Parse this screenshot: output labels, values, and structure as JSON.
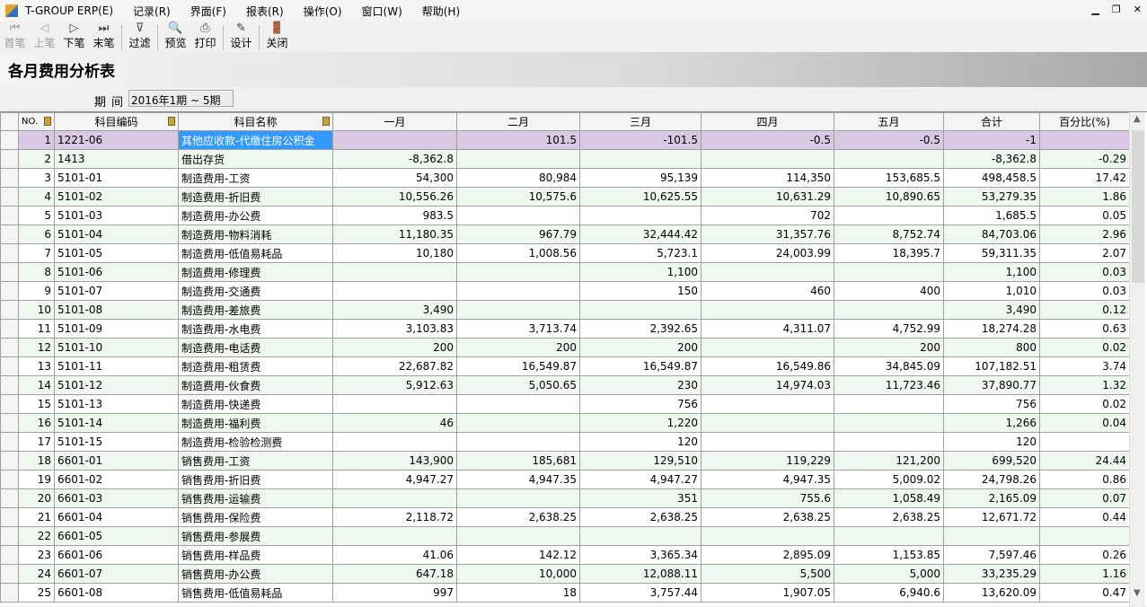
{
  "menu": {
    "app": "T-GROUP ERP(E)",
    "items": [
      "记录(R)",
      "界面(F)",
      "报表(R)",
      "操作(O)",
      "窗口(W)",
      "帮助(H)"
    ]
  },
  "toolbar": [
    {
      "label": "首笔",
      "icon": "first-record-icon",
      "glyph": "⏮",
      "enabled": false
    },
    {
      "label": "上笔",
      "icon": "prev-record-icon",
      "glyph": "◁",
      "enabled": false
    },
    {
      "label": "下笔",
      "icon": "next-record-icon",
      "glyph": "▷",
      "enabled": true
    },
    {
      "label": "末笔",
      "icon": "last-record-icon",
      "glyph": "⏭",
      "enabled": true
    },
    {
      "label": "过滤",
      "icon": "filter-icon",
      "glyph": "⊽",
      "enabled": true
    },
    {
      "label": "预览",
      "icon": "preview-icon",
      "glyph": "🔍",
      "enabled": true
    },
    {
      "label": "打印",
      "icon": "print-icon",
      "glyph": "⎙",
      "enabled": true
    },
    {
      "label": "设计",
      "icon": "design-icon",
      "glyph": "✎",
      "enabled": true
    },
    {
      "label": "关闭",
      "icon": "close-door-icon",
      "glyph": "🚪",
      "enabled": true
    }
  ],
  "title": "各月费用分析表",
  "period": {
    "label": "期间",
    "value": "2016年1期 ~ 5期"
  },
  "table": {
    "headers": [
      "NO.",
      "科目编码",
      "科目名称",
      "一月",
      "二月",
      "三月",
      "四月",
      "五月",
      "合计",
      "百分比(%)"
    ],
    "rows": [
      [
        "1",
        "1221-06",
        "其他应收款-代缴住房公积金",
        "",
        "101.5",
        "-101.5",
        "-0.5",
        "-0.5",
        "-1",
        ""
      ],
      [
        "2",
        "1413",
        "借出存货",
        "-8,362.8",
        "",
        "",
        "",
        "",
        "-8,362.8",
        "-0.29"
      ],
      [
        "3",
        "5101-01",
        "制造费用-工资",
        "54,300",
        "80,984",
        "95,139",
        "114,350",
        "153,685.5",
        "498,458.5",
        "17.42"
      ],
      [
        "4",
        "5101-02",
        "制造费用-折旧费",
        "10,556.26",
        "10,575.6",
        "10,625.55",
        "10,631.29",
        "10,890.65",
        "53,279.35",
        "1.86"
      ],
      [
        "5",
        "5101-03",
        "制造费用-办公费",
        "983.5",
        "",
        "",
        "702",
        "",
        "1,685.5",
        "0.05"
      ],
      [
        "6",
        "5101-04",
        "制造费用-物料消耗",
        "11,180.35",
        "967.79",
        "32,444.42",
        "31,357.76",
        "8,752.74",
        "84,703.06",
        "2.96"
      ],
      [
        "7",
        "5101-05",
        "制造费用-低值易耗品",
        "10,180",
        "1,008.56",
        "5,723.1",
        "24,003.99",
        "18,395.7",
        "59,311.35",
        "2.07"
      ],
      [
        "8",
        "5101-06",
        "制造费用-修理费",
        "",
        "",
        "1,100",
        "",
        "",
        "1,100",
        "0.03"
      ],
      [
        "9",
        "5101-07",
        "制造费用-交通费",
        "",
        "",
        "150",
        "460",
        "400",
        "1,010",
        "0.03"
      ],
      [
        "10",
        "5101-08",
        "制造费用-差旅费",
        "3,490",
        "",
        "",
        "",
        "",
        "3,490",
        "0.12"
      ],
      [
        "11",
        "5101-09",
        "制造费用-水电费",
        "3,103.83",
        "3,713.74",
        "2,392.65",
        "4,311.07",
        "4,752.99",
        "18,274.28",
        "0.63"
      ],
      [
        "12",
        "5101-10",
        "制造费用-电话费",
        "200",
        "200",
        "200",
        "",
        "200",
        "800",
        "0.02"
      ],
      [
        "13",
        "5101-11",
        "制造费用-租赁费",
        "22,687.82",
        "16,549.87",
        "16,549.87",
        "16,549.86",
        "34,845.09",
        "107,182.51",
        "3.74"
      ],
      [
        "14",
        "5101-12",
        "制造费用-伙食费",
        "5,912.63",
        "5,050.65",
        "230",
        "14,974.03",
        "11,723.46",
        "37,890.77",
        "1.32"
      ],
      [
        "15",
        "5101-13",
        "制造费用-快递费",
        "",
        "",
        "756",
        "",
        "",
        "756",
        "0.02"
      ],
      [
        "16",
        "5101-14",
        "制造费用-福利费",
        "46",
        "",
        "1,220",
        "",
        "",
        "1,266",
        "0.04"
      ],
      [
        "17",
        "5101-15",
        "制造费用-检验检测费",
        "",
        "",
        "120",
        "",
        "",
        "120",
        ""
      ],
      [
        "18",
        "6601-01",
        "销售费用-工资",
        "143,900",
        "185,681",
        "129,510",
        "119,229",
        "121,200",
        "699,520",
        "24.44"
      ],
      [
        "19",
        "6601-02",
        "销售费用-折旧费",
        "4,947.27",
        "4,947.35",
        "4,947.27",
        "4,947.35",
        "5,009.02",
        "24,798.26",
        "0.86"
      ],
      [
        "20",
        "6601-03",
        "销售费用-运输费",
        "",
        "",
        "351",
        "755.6",
        "1,058.49",
        "2,165.09",
        "0.07"
      ],
      [
        "21",
        "6601-04",
        "销售费用-保险费",
        "2,118.72",
        "2,638.25",
        "2,638.25",
        "2,638.25",
        "2,638.25",
        "12,671.72",
        "0.44"
      ],
      [
        "22",
        "6601-05",
        "销售费用-参展费",
        "",
        "",
        "",
        "",
        "",
        "",
        ""
      ],
      [
        "23",
        "6601-06",
        "销售费用-样品费",
        "41.06",
        "142.12",
        "3,365.34",
        "2,895.09",
        "1,153.85",
        "7,597.46",
        "0.26"
      ],
      [
        "24",
        "6601-07",
        "销售费用-办公费",
        "647.18",
        "10,000",
        "12,088.11",
        "5,500",
        "5,000",
        "33,235.29",
        "1.16"
      ],
      [
        "25",
        "6601-08",
        "销售费用-低值易耗品",
        "997",
        "18",
        "3,757.44",
        "1,907.05",
        "6,940.6",
        "13,620.09",
        "0.47"
      ]
    ]
  },
  "colors": {
    "selected_row": "#d8c8e4",
    "current_cell": "#3399ff",
    "alt_row": "#eef8ee"
  }
}
